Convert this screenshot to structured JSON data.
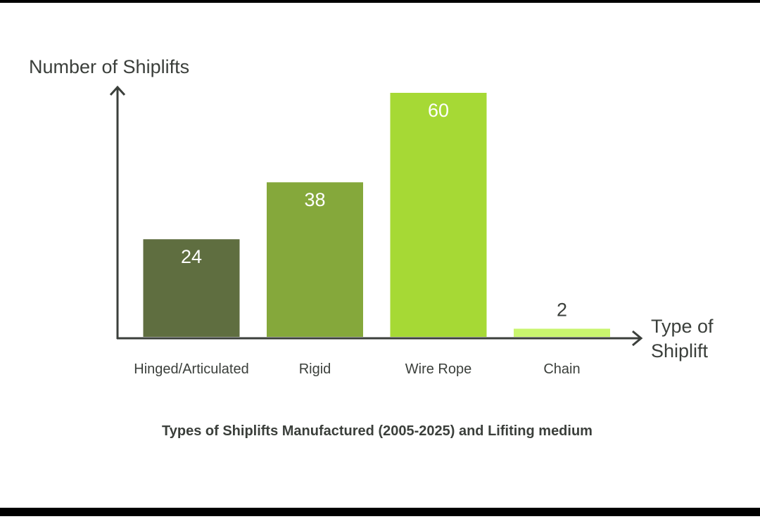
{
  "chart_data": {
    "type": "bar",
    "title": "Types of Shiplifts Manufactured (2005-2025) and Lifiting medium",
    "ylabel": "Number of Shiplifts",
    "xlabel_lines": [
      "Type of",
      "Shiplift"
    ],
    "categories": [
      "Hinged/Articulated",
      "Rigid",
      "Wire Rope",
      "Chain"
    ],
    "values": [
      24,
      38,
      60,
      2
    ],
    "colors": [
      "#5f6e40",
      "#85a83b",
      "#a6d935",
      "#c9f56e"
    ],
    "ylim": [
      0,
      60
    ],
    "grid": false,
    "legend": "none"
  }
}
